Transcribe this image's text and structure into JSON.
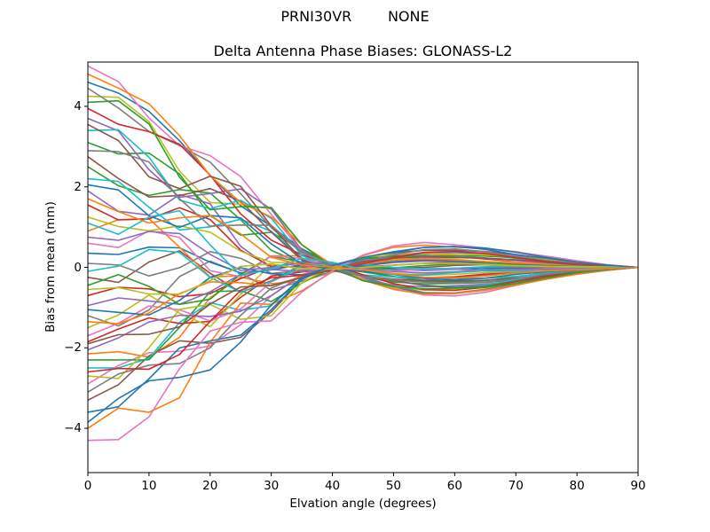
{
  "figure": {
    "background": "#ffffff",
    "spine_color": "#000000",
    "text_color": "#000000"
  },
  "chart_data": {
    "type": "line",
    "suptitle": "PRNI30VR        NONE",
    "title": "Delta Antenna Phase Biases: GLONASS-L2",
    "xlabel": "Elvation angle (degrees)",
    "ylabel": "Bias from mean (mm)",
    "xlim": [
      0,
      90
    ],
    "ylim": [
      -5.1,
      5.1
    ],
    "xticks": [
      0,
      10,
      20,
      30,
      40,
      50,
      60,
      70,
      80,
      90
    ],
    "xtick_labels": [
      "0",
      "10",
      "20",
      "30",
      "40",
      "50",
      "60",
      "70",
      "80",
      "90"
    ],
    "yticks": [
      -4,
      -2,
      0,
      2,
      4
    ],
    "ytick_labels": [
      "−4",
      "−2",
      "0",
      "2",
      "4"
    ],
    "grid": false,
    "legend": "none",
    "x": [
      0,
      5,
      10,
      15,
      20,
      25,
      30,
      35,
      40,
      45,
      50,
      55,
      60,
      65,
      70,
      75,
      80,
      85,
      90
    ],
    "shape": [
      1.0,
      0.92,
      0.8,
      0.66,
      0.52,
      0.38,
      0.25,
      0.1,
      0.01,
      -0.06,
      -0.11,
      -0.14,
      -0.138,
      -0.12,
      -0.09,
      -0.06,
      -0.035,
      -0.015,
      0.0
    ],
    "wiggle_env": [
      0,
      0.5,
      0.8,
      1.0,
      1.0,
      0.9,
      0.7,
      0.28,
      0.16,
      0.12,
      0.09,
      0.08,
      0.07,
      0.06,
      0.05,
      0.04,
      0.02,
      0.01,
      0
    ],
    "wiggle": {
      "amp_base": 0.25,
      "amp_var": 0.55,
      "freq_base": 0.9,
      "freq_var": 0.5,
      "phase_step": 2.3999
    },
    "starts": [
      4.6,
      -2.15,
      3.1,
      -0.7,
      1.9,
      -3.3,
      5.0,
      -1.2,
      4.25,
      -2.5,
      0.35,
      -4.0,
      2.5,
      -1.85,
      3.7,
      -0.25,
      -2.9,
      4.45,
      -1.5,
      2.2,
      -3.6,
      0.9,
      -2.3,
      3.95,
      -0.95,
      2.75,
      -1.7,
      0.1,
      -2.7,
      3.4,
      -1.05,
      4.8,
      -0.45,
      1.55,
      -2.05,
      3.55,
      0.6,
      -3.1,
      1.25,
      -0.1,
      2.05,
      -1.35,
      4.1,
      -2.6,
      0.75,
      -1.9,
      -4.3,
      2.9,
      -0.55,
      1.1,
      -3.85,
      1.7
    ],
    "palette": [
      "#1f77b4",
      "#ff7f0e",
      "#2ca02c",
      "#d62728",
      "#9467bd",
      "#8c564b",
      "#e377c2",
      "#7f7f7f",
      "#bcbd22",
      "#17becf"
    ],
    "line_width": 1.6
  }
}
